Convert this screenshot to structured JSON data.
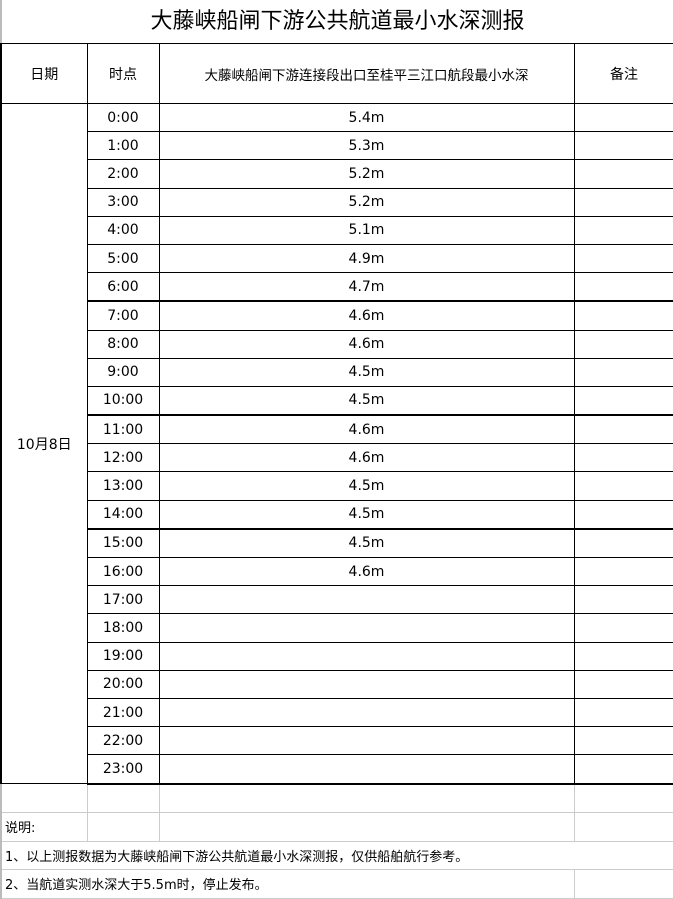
{
  "title": "大藤峡船闸下游公共航道最小水深测报",
  "headers": {
    "date": "日期",
    "time": "时点",
    "depth": "大藤峡船闸下游连接段出口至桂平三江口航段最小水深",
    "remark": "备注"
  },
  "date": "10月8日",
  "rows": [
    {
      "time": "0:00",
      "depth": "5.4m"
    },
    {
      "time": "1:00",
      "depth": "5.3m"
    },
    {
      "time": "2:00",
      "depth": "5.2m"
    },
    {
      "time": "3:00",
      "depth": "5.2m"
    },
    {
      "time": "4:00",
      "depth": "5.1m"
    },
    {
      "time": "5:00",
      "depth": "4.9m"
    },
    {
      "time": "6:00",
      "depth": "4.7m"
    },
    {
      "time": "7:00",
      "depth": "4.6m"
    },
    {
      "time": "8:00",
      "depth": "4.6m"
    },
    {
      "time": "9:00",
      "depth": "4.5m"
    },
    {
      "time": "10:00",
      "depth": "4.5m"
    },
    {
      "time": "11:00",
      "depth": "4.6m"
    },
    {
      "time": "12:00",
      "depth": "4.6m"
    },
    {
      "time": "13:00",
      "depth": "4.5m"
    },
    {
      "time": "14:00",
      "depth": "4.5m"
    },
    {
      "time": "15:00",
      "depth": "4.5m"
    },
    {
      "time": "16:00",
      "depth": "4.6m"
    },
    {
      "time": "17:00",
      "depth": ""
    },
    {
      "time": "18:00",
      "depth": ""
    },
    {
      "time": "19:00",
      "depth": ""
    },
    {
      "time": "20:00",
      "depth": ""
    },
    {
      "time": "21:00",
      "depth": ""
    },
    {
      "time": "22:00",
      "depth": ""
    },
    {
      "time": "23:00",
      "depth": ""
    }
  ],
  "notes": {
    "label": "说明:",
    "items": [
      "1、以上测报数据为大藤峡船闸下游公共航道最小水深测报，仅供船舶航行参考。",
      "2、当航道实测水深大于5.5m时，停止发布。"
    ]
  }
}
